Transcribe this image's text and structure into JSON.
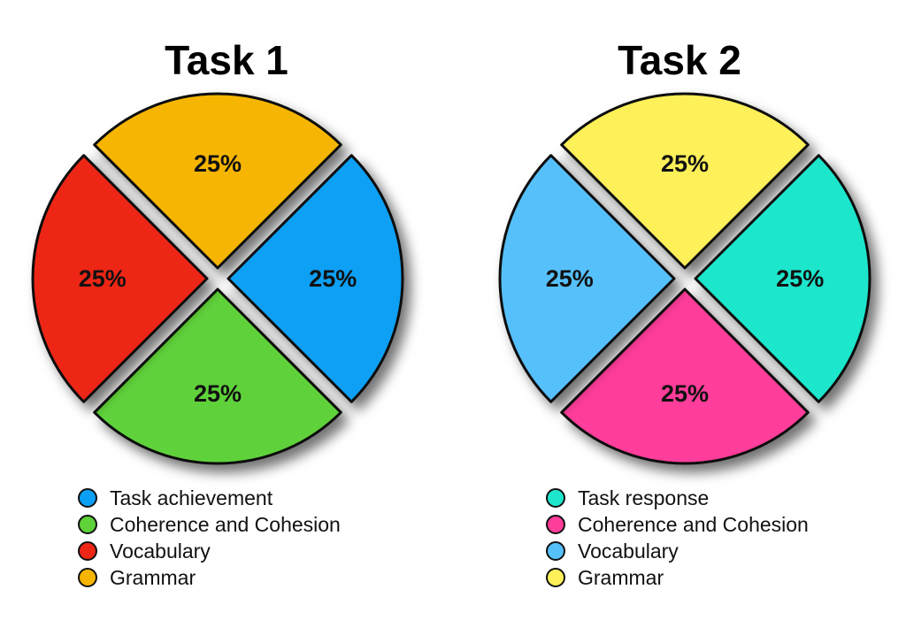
{
  "chart_data": [
    {
      "type": "pie",
      "title": "Task 1",
      "colors": {
        "Task achievement": "#0aa0f5",
        "Coherence and Cohesion": "#5fd23a",
        "Vocabulary": "#ee2616",
        "Grammar": "#f6b500"
      },
      "slices": [
        {
          "name": "Grammar",
          "value": 25,
          "label": "25%"
        },
        {
          "name": "Task achievement",
          "value": 25,
          "label": "25%"
        },
        {
          "name": "Coherence and Cohesion",
          "value": 25,
          "label": "25%"
        },
        {
          "name": "Vocabulary",
          "value": 25,
          "label": "25%"
        }
      ],
      "legend": [
        "Task achievement",
        "Coherence and Cohesion",
        "Vocabulary",
        "Grammar"
      ],
      "legend_position": "bottom"
    },
    {
      "type": "pie",
      "title": "Task 2",
      "colors": {
        "Task response": "#1ee6cc",
        "Coherence and Cohesion": "#ff3d9a",
        "Vocabulary": "#56c0fb",
        "Grammar": "#fdf058"
      },
      "slices": [
        {
          "name": "Grammar",
          "value": 25,
          "label": "25%"
        },
        {
          "name": "Task response",
          "value": 25,
          "label": "25%"
        },
        {
          "name": "Coherence and Cohesion",
          "value": 25,
          "label": "25%"
        },
        {
          "name": "Vocabulary",
          "value": 25,
          "label": "25%"
        }
      ],
      "legend": [
        "Task response",
        "Coherence and Cohesion",
        "Vocabulary",
        "Grammar"
      ],
      "legend_position": "bottom"
    }
  ]
}
